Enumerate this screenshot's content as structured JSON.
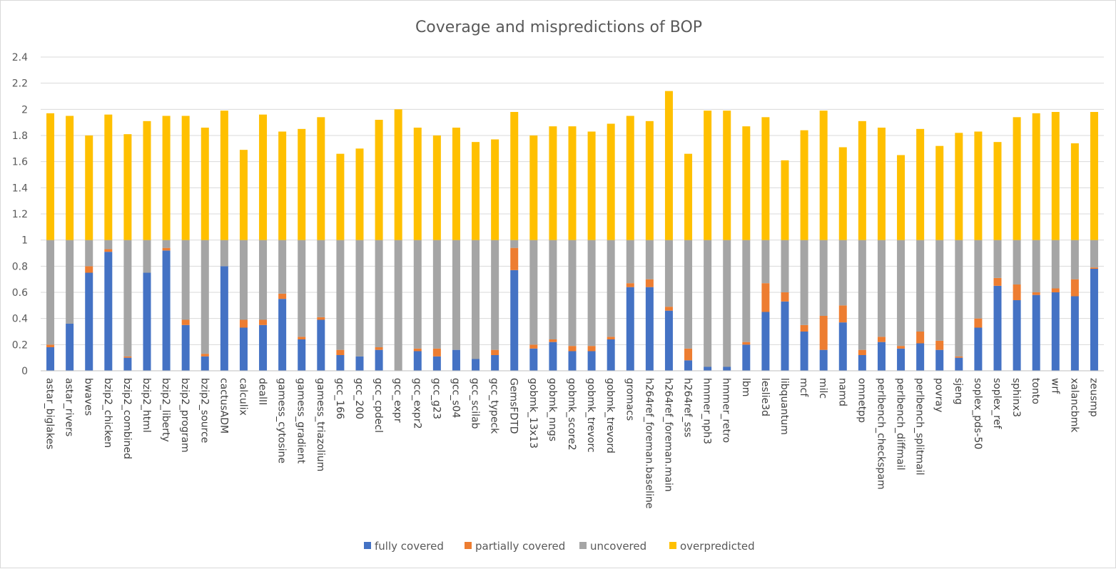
{
  "chart_data": {
    "type": "bar",
    "stacked": true,
    "title": "Coverage and mispredictions of BOP",
    "xlabel": "",
    "ylabel": "",
    "ylim": [
      0,
      2.4
    ],
    "yticks": [
      "0",
      "0.2",
      "0.4",
      "0.6",
      "0.8",
      "1",
      "1.2",
      "1.4",
      "1.6",
      "1.8",
      "2",
      "2.2",
      "2.4"
    ],
    "grid": true,
    "legend_position": "bottom",
    "categories": [
      "astar_biglakes",
      "astar_rivers",
      "bwaves",
      "bzip2_chicken",
      "bzip2_combined",
      "bzip2_html",
      "bzip2_liberty",
      "bzip2_program",
      "bzip2_source",
      "cactusADM",
      "calculix",
      "dealII",
      "gamess_cytosine",
      "gamess_gradient",
      "gamess_triazolium",
      "gcc_166",
      "gcc_200",
      "gcc_cpdecl",
      "gcc_expr",
      "gcc_expr2",
      "gcc_g23",
      "gcc_s04",
      "gcc_scilab",
      "gcc_typeck",
      "GemsFDTD",
      "gobmk_13x13",
      "gobmk_nngs",
      "gobmk_score2",
      "gobmk_trevorc",
      "gobmk_trevord",
      "gromacs",
      "h264ref_foreman.baseline",
      "h264ref_foreman.main",
      "h264ref_sss",
      "hmmer_nph3",
      "hmmer_retro",
      "lbm",
      "leslie3d",
      "libquantum",
      "mcf",
      "milc",
      "namd",
      "omnetpp",
      "perlbench_checkspam",
      "perlbench_diffmail",
      "perlbench_splitmail",
      "povray",
      "sjeng",
      "soplex_pds-50",
      "soplex_ref",
      "sphinx3",
      "tonto",
      "wrf",
      "xalancbmk",
      "zeusmp"
    ],
    "series": [
      {
        "name": "fully covered",
        "color": "#4472c4",
        "values": [
          0.18,
          0.36,
          0.75,
          0.91,
          0.1,
          0.75,
          0.92,
          0.35,
          0.11,
          0.8,
          0.33,
          0.35,
          0.55,
          0.24,
          0.39,
          0.12,
          0.11,
          0.16,
          0.0,
          0.15,
          0.11,
          0.16,
          0.09,
          0.12,
          0.77,
          0.17,
          0.22,
          0.15,
          0.15,
          0.24,
          0.64,
          0.64,
          0.46,
          0.08,
          0.03,
          0.03,
          0.2,
          0.45,
          0.53,
          0.3,
          0.16,
          0.37,
          0.12,
          0.22,
          0.17,
          0.21,
          0.16,
          0.1,
          0.33,
          0.65,
          0.54,
          0.58,
          0.6,
          0.57,
          0.78
        ]
      },
      {
        "name": "partially covered",
        "color": "#ed7d31",
        "values": [
          0.02,
          0.0,
          0.05,
          0.02,
          0.01,
          0.0,
          0.02,
          0.04,
          0.02,
          0.0,
          0.06,
          0.04,
          0.04,
          0.02,
          0.02,
          0.04,
          0.0,
          0.02,
          0.0,
          0.02,
          0.06,
          0.0,
          0.0,
          0.04,
          0.17,
          0.03,
          0.02,
          0.04,
          0.04,
          0.02,
          0.03,
          0.06,
          0.03,
          0.09,
          0.0,
          0.0,
          0.02,
          0.22,
          0.07,
          0.05,
          0.26,
          0.13,
          0.04,
          0.04,
          0.02,
          0.09,
          0.07,
          0.01,
          0.07,
          0.06,
          0.12,
          0.02,
          0.03,
          0.13,
          0.01
        ]
      },
      {
        "name": "uncovered",
        "color": "#a5a5a5",
        "values": [
          0.8,
          0.64,
          0.2,
          0.07,
          0.89,
          0.25,
          0.06,
          0.61,
          0.87,
          0.2,
          0.61,
          0.61,
          0.41,
          0.74,
          0.59,
          0.84,
          0.89,
          0.82,
          1.0,
          0.83,
          0.83,
          0.84,
          0.91,
          0.84,
          0.06,
          0.8,
          0.76,
          0.81,
          0.81,
          0.74,
          0.33,
          0.3,
          0.51,
          0.83,
          0.97,
          0.97,
          0.78,
          0.33,
          0.4,
          0.65,
          0.58,
          0.5,
          0.84,
          0.74,
          0.81,
          0.7,
          0.77,
          0.89,
          0.6,
          0.29,
          0.34,
          0.4,
          0.37,
          0.3,
          0.21
        ]
      },
      {
        "name": "overpredicted",
        "color": "#ffc000",
        "values": [
          0.97,
          0.95,
          0.8,
          0.96,
          0.81,
          0.91,
          0.95,
          0.95,
          0.86,
          0.99,
          0.69,
          0.96,
          0.83,
          0.85,
          0.94,
          0.66,
          0.7,
          0.92,
          1.0,
          0.86,
          0.8,
          0.86,
          0.75,
          0.77,
          0.98,
          0.8,
          0.87,
          0.87,
          0.83,
          0.89,
          0.95,
          0.91,
          1.14,
          0.66,
          0.99,
          0.99,
          0.87,
          0.94,
          0.61,
          0.84,
          0.99,
          0.71,
          0.91,
          0.86,
          0.65,
          0.85,
          0.72,
          0.82,
          0.83,
          0.75,
          0.94,
          0.97,
          0.98,
          0.74,
          0.98
        ]
      }
    ]
  }
}
